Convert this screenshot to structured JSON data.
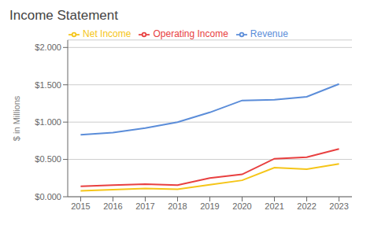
{
  "chart_data": {
    "type": "line",
    "title": "Income Statement",
    "y_label": "$ in Millions",
    "x": [
      2015,
      2016,
      2017,
      2018,
      2019,
      2020,
      2021,
      2022,
      2023
    ],
    "series": [
      {
        "name": "Revenue",
        "color": "#5B8DD9",
        "values": [
          0.83,
          0.86,
          0.92,
          1.0,
          1.13,
          1.29,
          1.3,
          1.34,
          1.51
        ]
      },
      {
        "name": "Operating Income",
        "color": "#E84040",
        "values": [
          0.14,
          0.155,
          0.17,
          0.155,
          0.25,
          0.3,
          0.51,
          0.53,
          0.64
        ]
      },
      {
        "name": "Net Income",
        "color": "#F5C518",
        "values": [
          0.08,
          0.095,
          0.11,
          0.1,
          0.16,
          0.22,
          0.39,
          0.37,
          0.44
        ]
      }
    ],
    "xlim": [
      2014.6,
      2023.4
    ],
    "xticks": [
      2015,
      2016,
      2017,
      2018,
      2019,
      2020,
      2021,
      2022,
      2023
    ],
    "ylim": [
      0.0,
      2.1
    ],
    "yticks": [
      {
        "value": 0.0,
        "label": "$0.000"
      },
      {
        "value": 0.5,
        "label": "$0.500"
      },
      {
        "value": 1.0,
        "label": "$1.000"
      },
      {
        "value": 1.5,
        "label": "$1.500"
      },
      {
        "value": 2.0,
        "label": "$2.000"
      }
    ],
    "grid": true,
    "legend": "top"
  }
}
